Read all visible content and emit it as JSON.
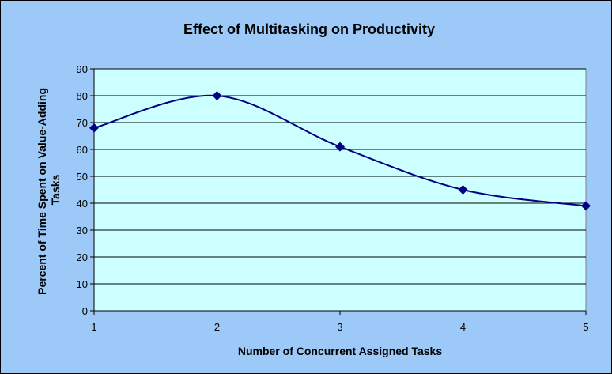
{
  "chart_data": {
    "type": "line",
    "title": "Effect of Multitasking on Productivity",
    "xlabel": "Number of Concurrent Assigned Tasks",
    "ylabel_lines": [
      "Percent of Time Spent on Value-Adding",
      "Tasks"
    ],
    "x": [
      1,
      2,
      3,
      4,
      5
    ],
    "series": [
      {
        "values": [
          68,
          80,
          61,
          45,
          39
        ]
      }
    ],
    "xlim": [
      1,
      5
    ],
    "ylim": [
      0,
      90
    ],
    "yticks": [
      "0",
      "10",
      "20",
      "30",
      "40",
      "50",
      "60",
      "70",
      "80",
      "90"
    ],
    "xticks": [
      "1",
      "2",
      "3",
      "4",
      "5"
    ],
    "grid": true,
    "legend": "none",
    "colors": {
      "background": "#9cc9f7",
      "plot_area": "#ccffff",
      "line": "#000080"
    }
  }
}
